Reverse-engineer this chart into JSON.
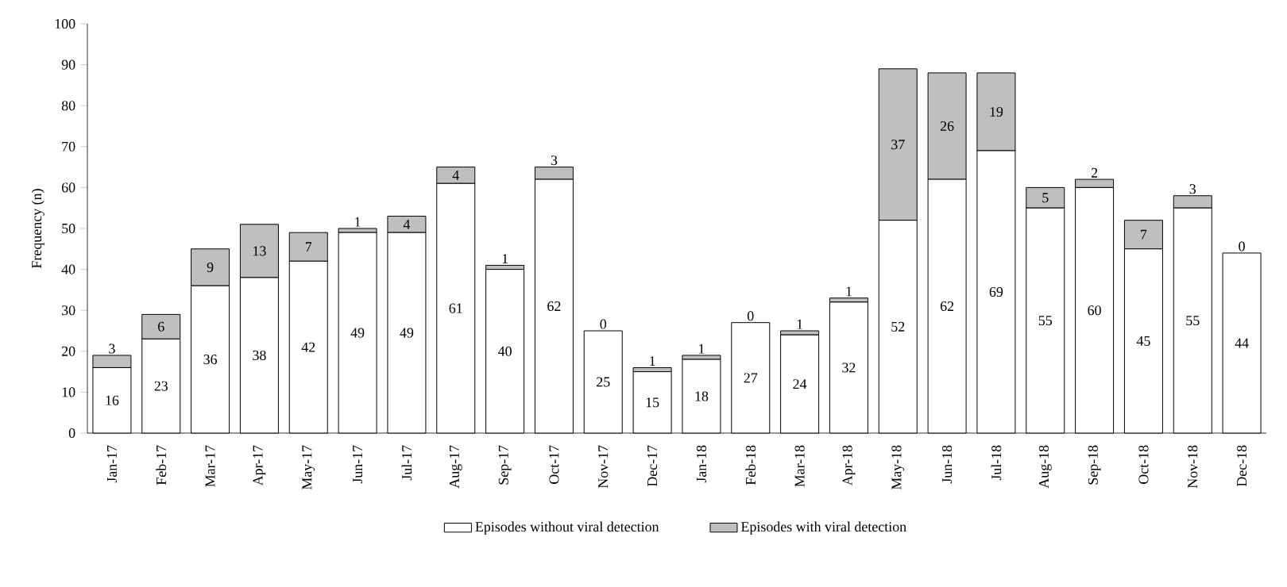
{
  "chart_data": {
    "type": "bar",
    "stacked": true,
    "ylabel": "Frequency (n)",
    "categories": [
      "Jan-17",
      "Feb-17",
      "Mar-17",
      "Apr-17",
      "May-17",
      "Jun-17",
      "Jul-17",
      "Aug-17",
      "Sep-17",
      "Oct-17",
      "Nov-17",
      "Dec-17",
      "Jan-18",
      "Feb-18",
      "Mar-18",
      "Apr-18",
      "May-18",
      "Jun-18",
      "Jul-18",
      "Aug-18",
      "Sep-18",
      "Oct-18",
      "Nov-18",
      "Dec-18"
    ],
    "series": [
      {
        "name": "Episodes without viral detection",
        "color": "#ffffff",
        "values": [
          16,
          23,
          36,
          38,
          42,
          49,
          49,
          61,
          40,
          62,
          25,
          15,
          18,
          27,
          24,
          32,
          52,
          62,
          69,
          55,
          60,
          45,
          55,
          44
        ]
      },
      {
        "name": "Episodes with viral detection",
        "color": "#bfbfbf",
        "values": [
          3,
          6,
          9,
          13,
          7,
          1,
          4,
          4,
          1,
          3,
          0,
          1,
          1,
          0,
          1,
          1,
          37,
          26,
          19,
          5,
          2,
          7,
          3,
          0
        ]
      }
    ],
    "ylim": [
      0,
      100
    ],
    "yticks": [
      0,
      10,
      20,
      30,
      40,
      50,
      60,
      70,
      80,
      90,
      100
    ],
    "data_labels": true,
    "grid": false,
    "legend": "bottom"
  }
}
